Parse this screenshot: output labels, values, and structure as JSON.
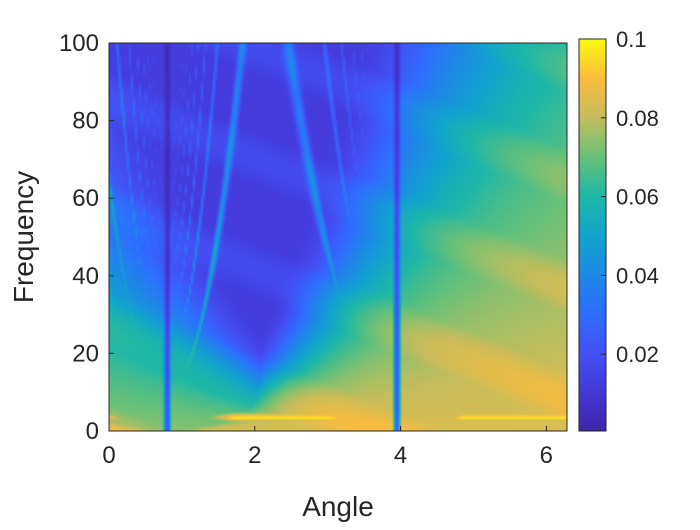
{
  "chart_data": {
    "type": "heatmap",
    "title": "",
    "xlabel": "Angle",
    "ylabel": "Frequency",
    "xlim": [
      0,
      6.2832
    ],
    "ylim": [
      0,
      100
    ],
    "x_ticks": [
      {
        "value": 0,
        "label": "0"
      },
      {
        "value": 2,
        "label": "2"
      },
      {
        "value": 4,
        "label": "4"
      },
      {
        "value": 6,
        "label": "6"
      }
    ],
    "y_ticks": [
      {
        "value": 0,
        "label": "0"
      },
      {
        "value": 20,
        "label": "20"
      },
      {
        "value": 40,
        "label": "40"
      },
      {
        "value": 60,
        "label": "60"
      },
      {
        "value": 80,
        "label": "80"
      },
      {
        "value": 100,
        "label": "100"
      }
    ],
    "colorbar": {
      "colormap": "parula",
      "range": [
        0.0005,
        0.1
      ],
      "ticks": [
        {
          "value": 0.02,
          "label": "0.02"
        },
        {
          "value": 0.04,
          "label": "0.04"
        },
        {
          "value": 0.06,
          "label": "0.06"
        },
        {
          "value": 0.08,
          "label": "0.08"
        },
        {
          "value": 0.1,
          "label": "0.1"
        }
      ]
    },
    "notable_features": {
      "dark_vertical_lines_at_angle": [
        0.8,
        3.95
      ],
      "bright_low_frequency_band": {
        "frequency_range": [
          1,
          6
        ],
        "peak_value": 0.1
      },
      "peak_ridge_value": 0.08
    },
    "grid": false,
    "legend": "none"
  }
}
